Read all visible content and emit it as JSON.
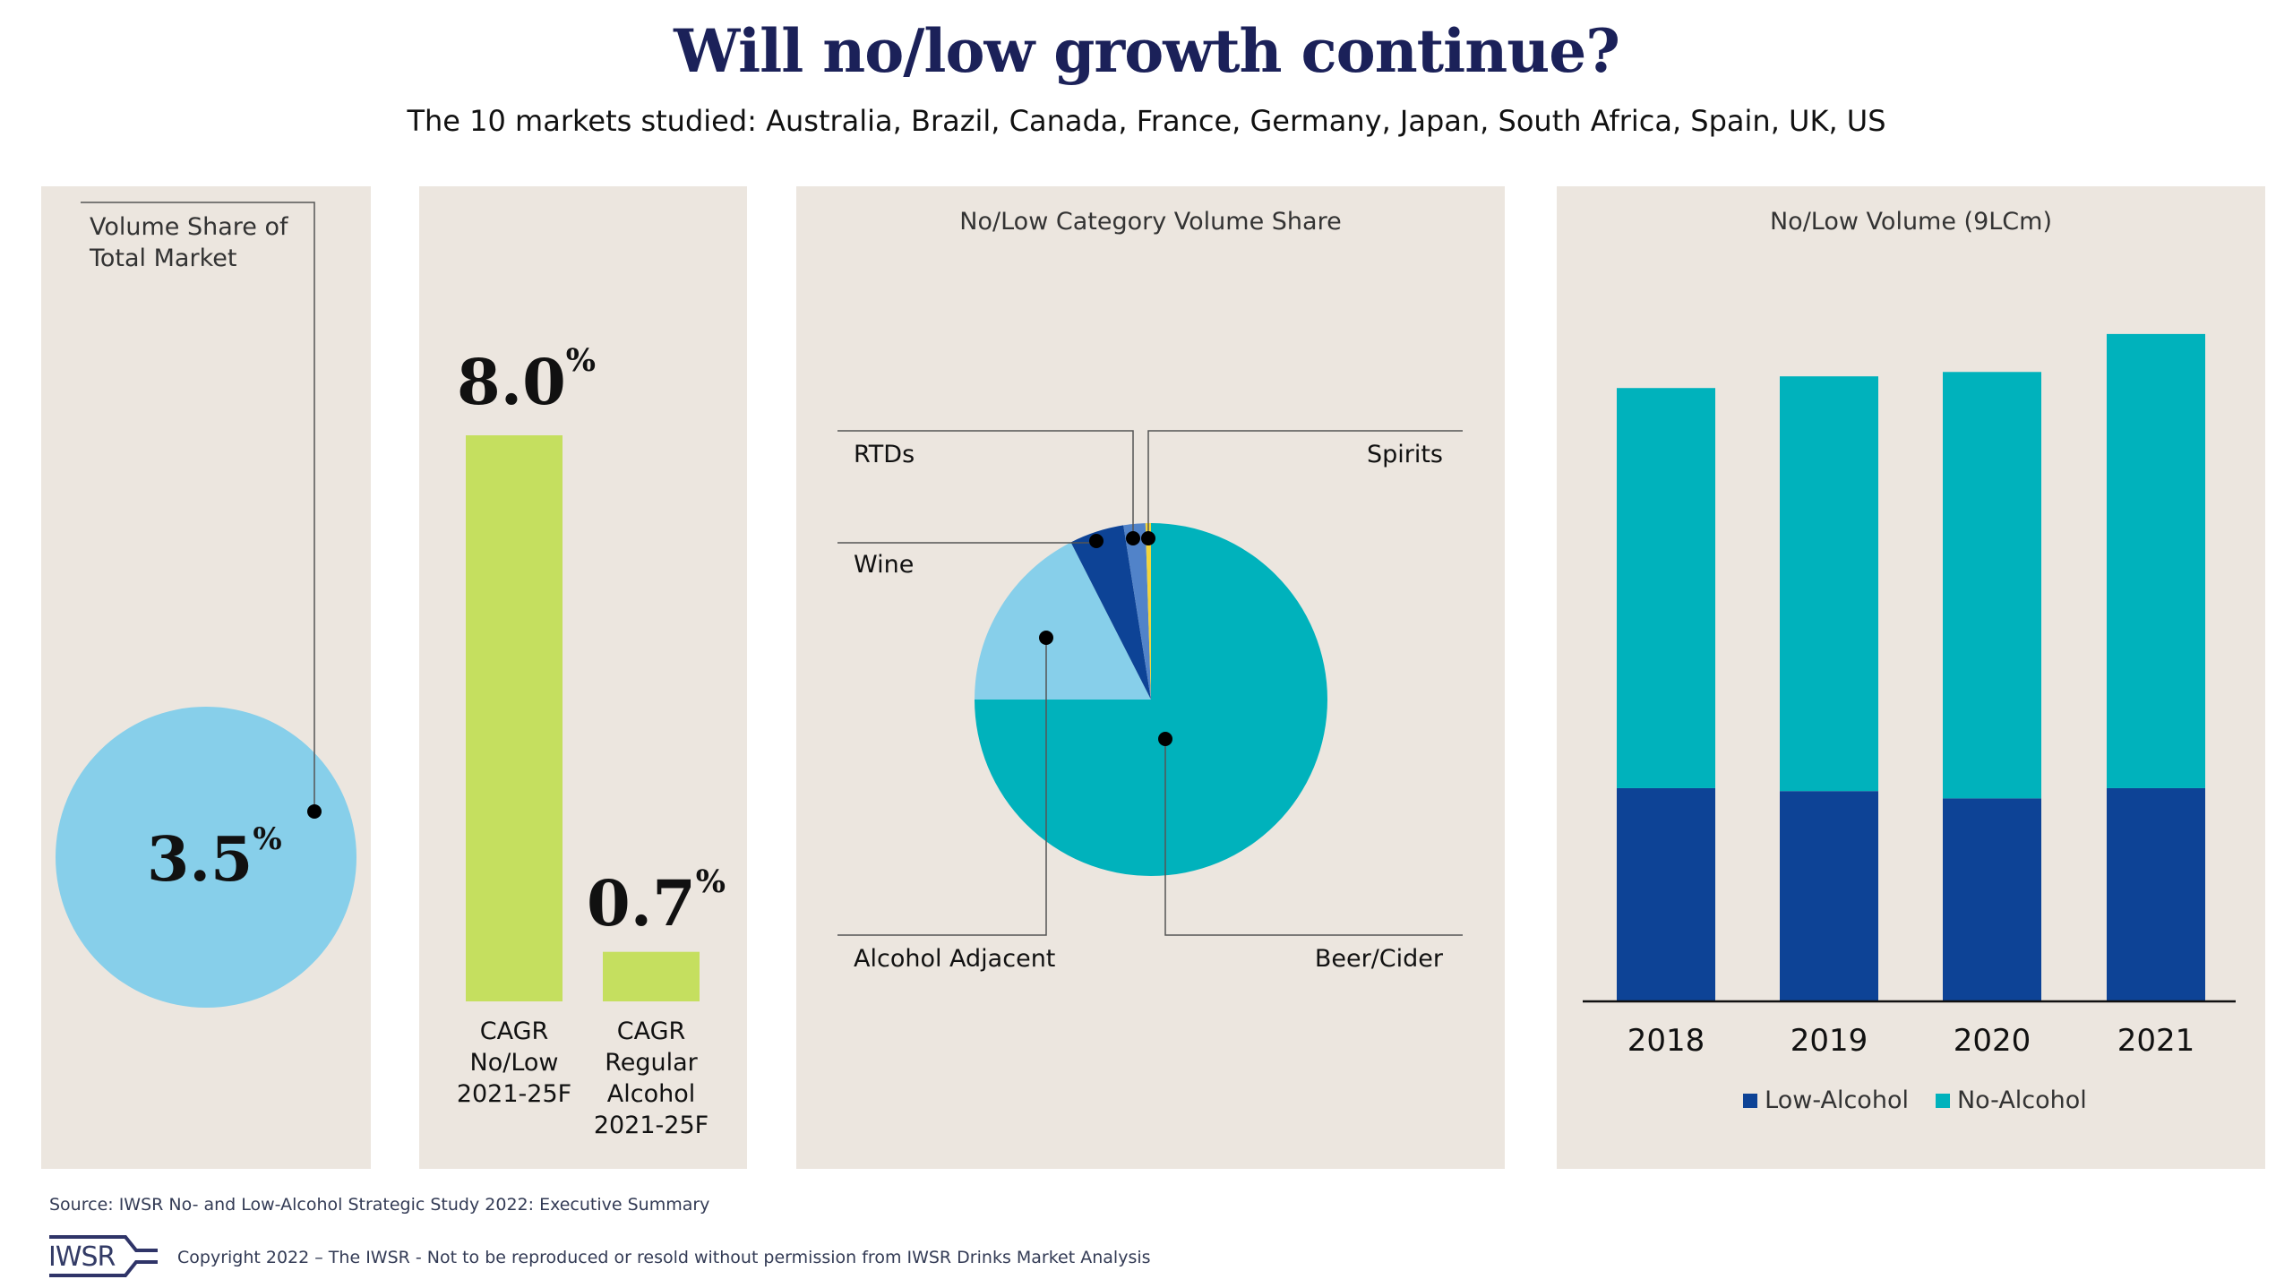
{
  "header": {
    "title": "Will no/low growth continue?",
    "subtitle": "The 10 markets studied: Australia, Brazil, Canada, France, Germany, Japan, South Africa, Spain, UK, US"
  },
  "colors": {
    "title": "#1b2159",
    "panel_bg": "#ece6df",
    "bubble": "#87cfea",
    "cagr_bar": "#c5df5f",
    "teal": "#00b2bc",
    "light_blue": "#87cfea",
    "dark_blue": "#0d4396",
    "mid_blue": "#5183c9",
    "yellow": "#f2d43c"
  },
  "panel1": {
    "label_line1": "Volume Share of",
    "label_line2": "Total Market",
    "value_main": "3.5",
    "value_unit": "%"
  },
  "panel2": {
    "bars": [
      {
        "value_main": "8.0",
        "value_unit": "%",
        "label": [
          "CAGR",
          "No/Low",
          "2021-25F"
        ]
      },
      {
        "value_main": "0.7",
        "value_unit": "%",
        "label": [
          "CAGR",
          "Regular",
          "Alcohol",
          "2021-25F"
        ]
      }
    ]
  },
  "footer": {
    "source": "Source: IWSR No- and Low-Alcohol Strategic Study 2022: Executive Summary",
    "logo": "IWSR",
    "copyright": "Copyright 2022 – The IWSR - Not to be reproduced or resold without permission from IWSR Drinks Market Analysis"
  },
  "chart_data": [
    {
      "type": "bar",
      "title": "",
      "categories": [
        "CAGR No/Low 2021-25F",
        "CAGR Regular Alcohol 2021-25F"
      ],
      "values": [
        8.0,
        0.7
      ],
      "unit": "%",
      "xlabel": "",
      "ylabel": "",
      "ylim": [
        0,
        8.0
      ]
    },
    {
      "type": "pie",
      "title": "No/Low Category Volume Share",
      "labels": [
        "Beer/Cider",
        "Alcohol Adjacent",
        "Wine",
        "RTDs",
        "Spirits"
      ],
      "values": [
        75,
        17.5,
        5,
        2,
        0.5
      ],
      "unit": "% (estimated)",
      "colors": [
        "#00b2bc",
        "#87cfea",
        "#0d4396",
        "#5183c9",
        "#f2d43c"
      ]
    },
    {
      "type": "bar",
      "stacked": true,
      "title": "No/Low Volume (9LCm)",
      "categories": [
        "2018",
        "2019",
        "2020",
        "2021"
      ],
      "series": [
        {
          "name": "Low-Alcohol",
          "color": "#0d4396",
          "values": [
            146,
            144,
            139,
            146
          ]
        },
        {
          "name": "No-Alcohol",
          "color": "#00b2bc",
          "values": [
            274,
            284,
            292,
            311
          ]
        }
      ],
      "note": "no axis values shown; relative units estimated",
      "xlabel": "",
      "ylabel": "",
      "ylim": [
        0,
        460
      ],
      "grid": false,
      "legend": "bottom"
    }
  ]
}
